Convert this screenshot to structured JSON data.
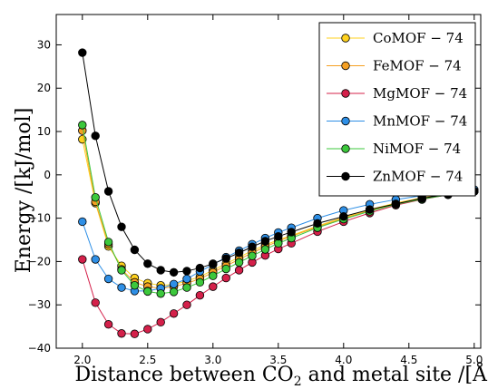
{
  "chart_data": {
    "type": "line",
    "xlabel": "Distance between CO",
    "xlabel_sub": "2",
    "xlabel_tail": " and metal site /[Å]",
    "ylabel": "Energy /[kJ/mol]",
    "xlim": [
      1.8,
      5.05
    ],
    "ylim": [
      -40,
      37
    ],
    "xticks": [
      2.0,
      2.5,
      3.0,
      3.5,
      4.0,
      4.5,
      5.0
    ],
    "xtick_labels": [
      "2.0",
      "2.5",
      "3.0",
      "3.5",
      "4.0",
      "4.5",
      "5.0"
    ],
    "yticks": [
      -40,
      -30,
      -20,
      -10,
      0,
      10,
      20,
      30
    ],
    "ytick_labels": [
      "−40",
      "−30",
      "−20",
      "−10",
      "0",
      "10",
      "20",
      "30"
    ],
    "grid": false,
    "legend_position": "top-right",
    "x": [
      2.0,
      2.1,
      2.2,
      2.3,
      2.4,
      2.5,
      2.6,
      2.7,
      2.8,
      2.9,
      3.0,
      3.1,
      3.2,
      3.3,
      3.4,
      3.5,
      3.6,
      3.8,
      4.0,
      4.2,
      4.4,
      4.6,
      4.8,
      5.0
    ],
    "series": [
      {
        "name": "CoMOF − 74",
        "color": "#ffd21e",
        "values": [
          8.2,
          -6.5,
          -16.5,
          -21.0,
          -23.8,
          -25.0,
          -25.5,
          -25.3,
          -24.5,
          -23.5,
          -22.0,
          -20.5,
          -19.0,
          -17.5,
          -16.2,
          -15.0,
          -14.0,
          -11.8,
          -9.8,
          -8.0,
          -6.5,
          -5.3,
          -4.4,
          -3.7
        ]
      },
      {
        "name": "FeMOF − 74",
        "color": "#f5a023",
        "values": [
          10.2,
          -6.2,
          -16.0,
          -21.8,
          -24.8,
          -25.8,
          -26.2,
          -25.8,
          -25.0,
          -24.0,
          -22.5,
          -21.0,
          -19.5,
          -18.0,
          -16.6,
          -15.3,
          -14.2,
          -12.0,
          -10.0,
          -8.2,
          -6.7,
          -5.5,
          -4.5,
          -3.8
        ]
      },
      {
        "name": "MgMOF − 74",
        "color": "#d4204a",
        "values": [
          -19.5,
          -29.5,
          -34.5,
          -36.6,
          -36.7,
          -35.6,
          -34.0,
          -32.0,
          -30.0,
          -27.8,
          -25.8,
          -23.8,
          -22.0,
          -20.2,
          -18.6,
          -17.1,
          -15.8,
          -13.1,
          -10.8,
          -8.8,
          -7.0,
          -5.7,
          -4.6,
          -3.8
        ]
      },
      {
        "name": "MnMOF − 74",
        "color": "#2e8fe6",
        "values": [
          -10.8,
          -19.5,
          -24.0,
          -26.0,
          -26.8,
          -26.8,
          -26.2,
          -25.2,
          -24.0,
          -22.3,
          -20.7,
          -19.0,
          -17.5,
          -16.0,
          -14.6,
          -13.3,
          -12.2,
          -10.0,
          -8.2,
          -6.8,
          -5.7,
          -4.8,
          -4.1,
          -3.4
        ]
      },
      {
        "name": "NiMOF − 74",
        "color": "#3cc83c",
        "values": [
          11.5,
          -5.2,
          -15.5,
          -22.0,
          -25.5,
          -26.9,
          -27.4,
          -27.0,
          -26.0,
          -24.8,
          -23.3,
          -21.7,
          -20.2,
          -18.7,
          -17.2,
          -15.8,
          -14.6,
          -12.2,
          -10.2,
          -8.4,
          -6.8,
          -5.6,
          -4.6,
          -3.8
        ]
      },
      {
        "name": "ZnMOF − 74",
        "color": "#000000",
        "values": [
          28.2,
          9.0,
          -3.8,
          -12.0,
          -17.3,
          -20.5,
          -22.0,
          -22.5,
          -22.2,
          -21.5,
          -20.5,
          -19.3,
          -18.0,
          -16.6,
          -15.3,
          -14.2,
          -13.2,
          -11.2,
          -9.6,
          -8.0,
          -6.7,
          -5.4,
          -4.5,
          -3.8
        ]
      }
    ]
  }
}
